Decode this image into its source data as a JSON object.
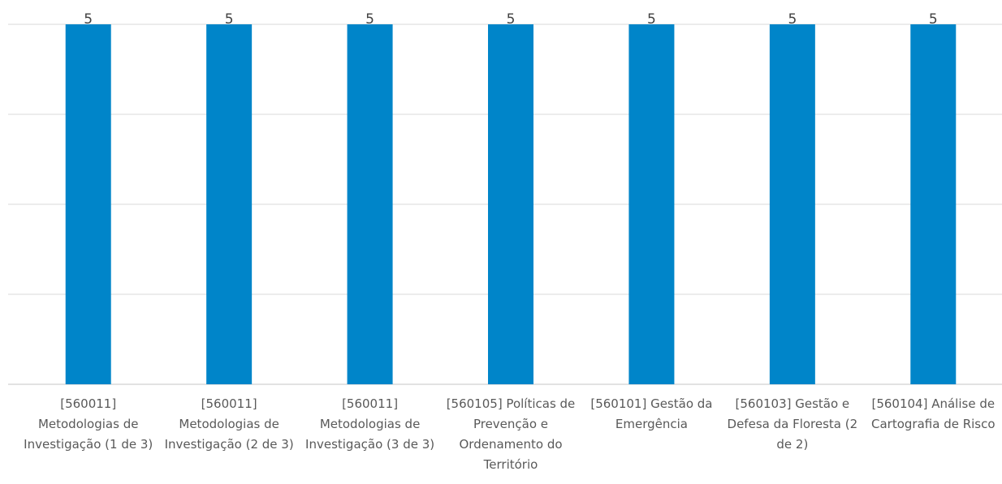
{
  "chart_data": {
    "type": "bar",
    "categories": [
      "[560011] Metodologias de Investigação (1 de 3)",
      "[560011] Metodologias de Investigação (2 de 3)",
      "[560011] Metodologias de Investigação (3 de 3)",
      "[560105] Políticas de Prevenção e Ordenamento do Território",
      "[560101] Gestão da Emergência",
      "[560103] Gestão e Defesa da Floresta (2 de 2)",
      "[560104] Análise de Cartografia de Risco"
    ],
    "category_label_lines": [
      [
        "[560011]",
        "Metodologias de",
        "Investigação (1 de 3)"
      ],
      [
        "[560011]",
        "Metodologias de",
        "Investigação (2 de 3)"
      ],
      [
        "[560011]",
        "Metodologias de",
        "Investigação (3 de 3)"
      ],
      [
        "[560105] Políticas de",
        "Prevenção e",
        "Ordenamento do",
        "Território"
      ],
      [
        "[560101] Gestão da",
        "Emergência"
      ],
      [
        "[560103] Gestão e",
        "Defesa da Floresta (2",
        "de 2)"
      ],
      [
        "[560104] Análise de",
        "Cartografia de Risco"
      ]
    ],
    "values": [
      5,
      5,
      5,
      5,
      5,
      5,
      5
    ],
    "data_labels": [
      "5",
      "5",
      "5",
      "5",
      "5",
      "5",
      "5"
    ],
    "ylim": [
      0,
      5
    ],
    "grid": true,
    "colors": {
      "bar": "#0085c9",
      "grid": "#d9d9d9",
      "topline": "#a6a6a6"
    }
  }
}
